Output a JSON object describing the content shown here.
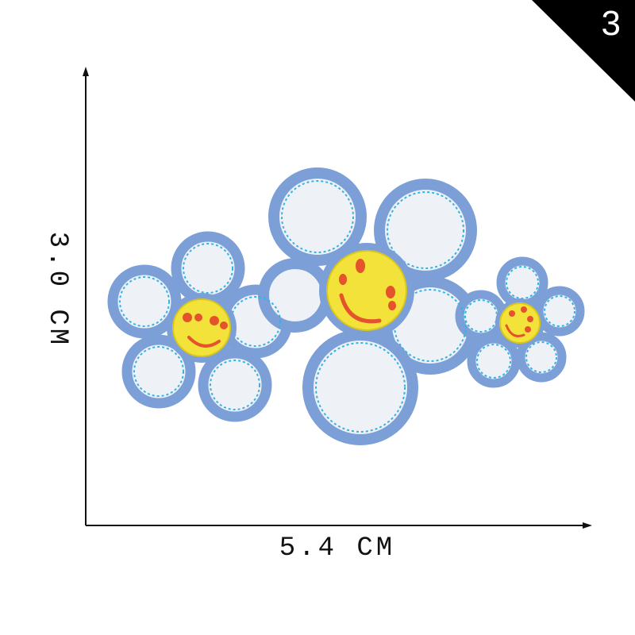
{
  "badge": {
    "number": "3"
  },
  "dimensions": {
    "width_label": "5.4 CM",
    "height_label": "3.0 CM"
  },
  "colors": {
    "petal_border": "#7b9fd6",
    "petal_outline_inner": "#36b3e3",
    "petal_fill": "#eef1f6",
    "face_fill": "#f2e23a",
    "face_features": "#e4532b",
    "background": "#ffffff",
    "badge": "#000000"
  }
}
